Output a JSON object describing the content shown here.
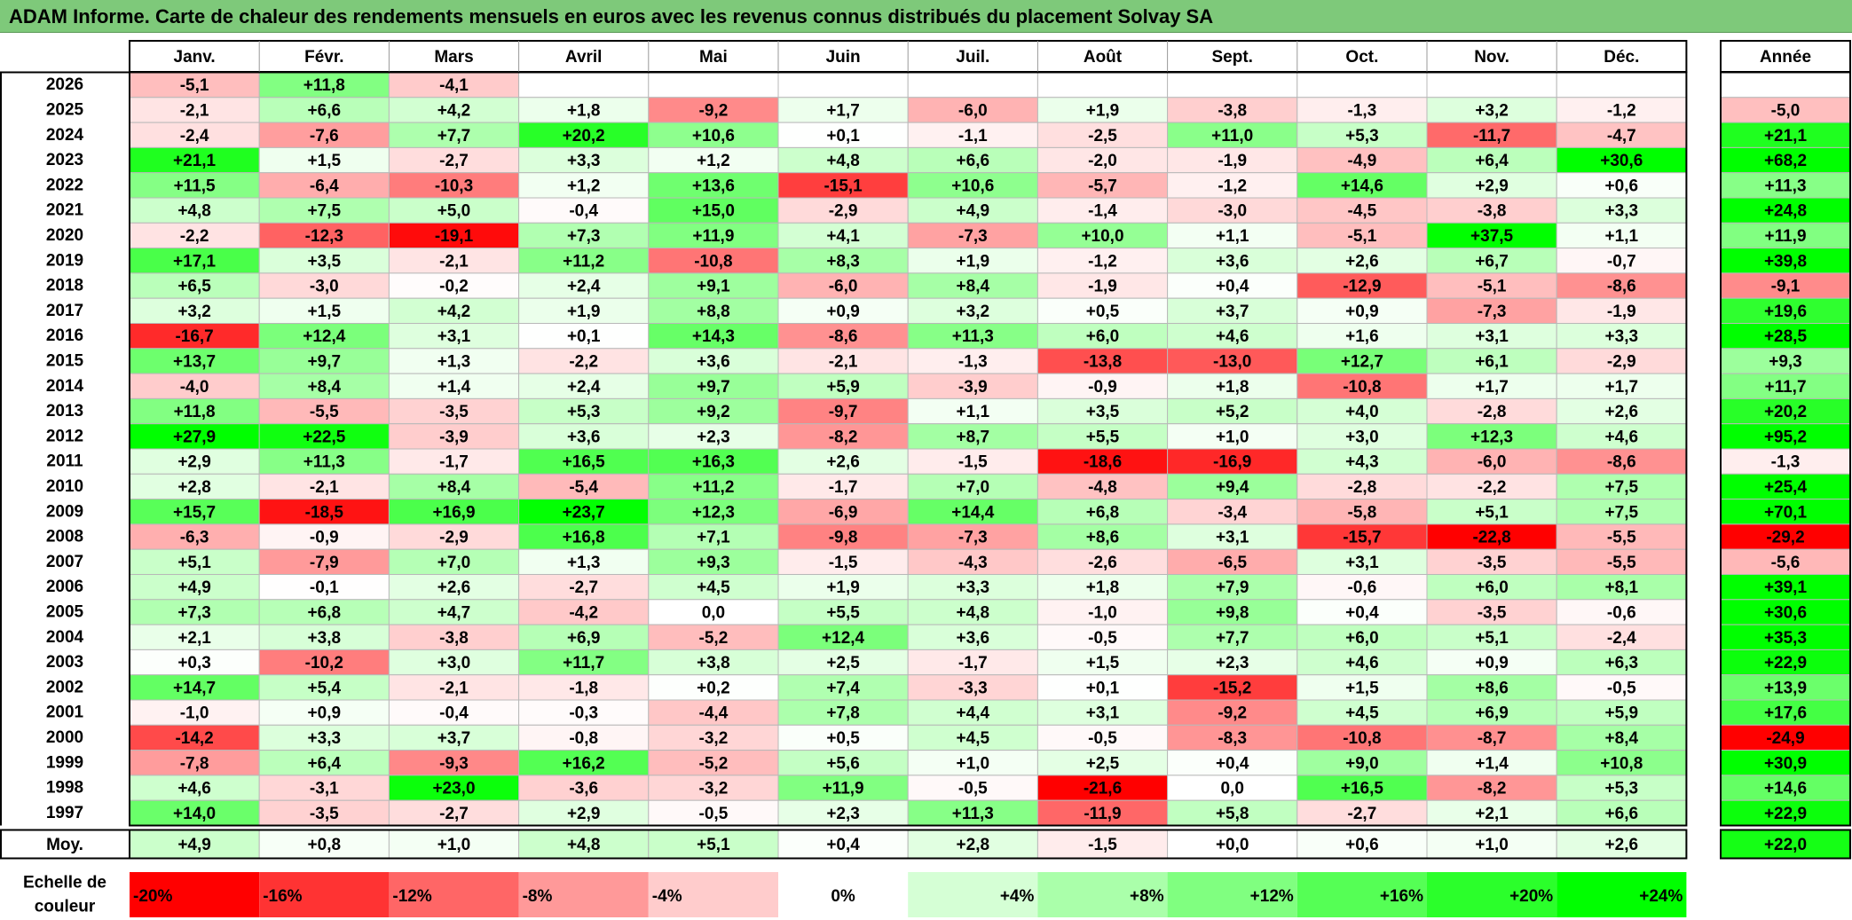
{
  "title": "ADAM Informe. Carte de chaleur des rendements mensuels en euros avec les revenus connus distribués du placement Solvay SA",
  "chart_data": {
    "type": "heatmap",
    "months": [
      "Janv.",
      "Févr.",
      "Mars",
      "Avril",
      "Mai",
      "Juin",
      "Juil.",
      "Août",
      "Sept.",
      "Oct.",
      "Nov.",
      "Déc."
    ],
    "annual_header": "Année",
    "rows": [
      {
        "year": "2026",
        "values": [
          "-5,1",
          "+11,8",
          "-4,1",
          "",
          "",
          "",
          "",
          "",
          "",
          "",
          "",
          ""
        ],
        "annual": ""
      },
      {
        "year": "2025",
        "values": [
          "-2,1",
          "+6,6",
          "+4,2",
          "+1,8",
          "-9,2",
          "+1,7",
          "-6,0",
          "+1,9",
          "-3,8",
          "-1,3",
          "+3,2",
          "-1,2"
        ],
        "annual": "-5,0"
      },
      {
        "year": "2024",
        "values": [
          "-2,4",
          "-7,6",
          "+7,7",
          "+20,2",
          "+10,6",
          "+0,1",
          "-1,1",
          "-2,5",
          "+11,0",
          "+5,3",
          "-11,7",
          "-4,7"
        ],
        "annual": "+21,1"
      },
      {
        "year": "2023",
        "values": [
          "+21,1",
          "+1,5",
          "-2,7",
          "+3,3",
          "+1,2",
          "+4,8",
          "+6,6",
          "-2,0",
          "-1,9",
          "-4,9",
          "+6,4",
          "+30,6"
        ],
        "annual": "+68,2"
      },
      {
        "year": "2022",
        "values": [
          "+11,5",
          "-6,4",
          "-10,3",
          "+1,2",
          "+13,6",
          "-15,1",
          "+10,6",
          "-5,7",
          "-1,2",
          "+14,6",
          "+2,9",
          "+0,6"
        ],
        "annual": "+11,3"
      },
      {
        "year": "2021",
        "values": [
          "+4,8",
          "+7,5",
          "+5,0",
          "-0,4",
          "+15,0",
          "-2,9",
          "+4,9",
          "-1,4",
          "-3,0",
          "-4,5",
          "-3,8",
          "+3,3"
        ],
        "annual": "+24,8"
      },
      {
        "year": "2020",
        "values": [
          "-2,2",
          "-12,3",
          "-19,1",
          "+7,3",
          "+11,9",
          "+4,1",
          "-7,3",
          "+10,0",
          "+1,1",
          "-5,1",
          "+37,5",
          "+1,1"
        ],
        "annual": "+11,9"
      },
      {
        "year": "2019",
        "values": [
          "+17,1",
          "+3,5",
          "-2,1",
          "+11,2",
          "-10,8",
          "+8,3",
          "+1,9",
          "-1,2",
          "+3,6",
          "+2,6",
          "+6,7",
          "-0,7"
        ],
        "annual": "+39,8"
      },
      {
        "year": "2018",
        "values": [
          "+6,5",
          "-3,0",
          "-0,2",
          "+2,4",
          "+9,1",
          "-6,0",
          "+8,4",
          "-1,9",
          "+0,4",
          "-12,9",
          "-5,1",
          "-8,6"
        ],
        "annual": "-9,1"
      },
      {
        "year": "2017",
        "values": [
          "+3,2",
          "+1,5",
          "+4,2",
          "+1,9",
          "+8,8",
          "+0,9",
          "+3,2",
          "+0,5",
          "+3,7",
          "+0,9",
          "-7,3",
          "-1,9"
        ],
        "annual": "+19,6"
      },
      {
        "year": "2016",
        "values": [
          "-16,7",
          "+12,4",
          "+3,1",
          "+0,1",
          "+14,3",
          "-8,6",
          "+11,3",
          "+6,0",
          "+4,6",
          "+1,6",
          "+3,1",
          "+3,3"
        ],
        "annual": "+28,5"
      },
      {
        "year": "2015",
        "values": [
          "+13,7",
          "+9,7",
          "+1,3",
          "-2,2",
          "+3,6",
          "-2,1",
          "-1,3",
          "-13,8",
          "-13,0",
          "+12,7",
          "+6,1",
          "-2,9"
        ],
        "annual": "+9,3"
      },
      {
        "year": "2014",
        "values": [
          "-4,0",
          "+8,4",
          "+1,4",
          "+2,4",
          "+9,7",
          "+5,9",
          "-3,9",
          "-0,9",
          "+1,8",
          "-10,8",
          "+1,7",
          "+1,7"
        ],
        "annual": "+11,7"
      },
      {
        "year": "2013",
        "values": [
          "+11,8",
          "-5,5",
          "-3,5",
          "+5,3",
          "+9,2",
          "-9,7",
          "+1,1",
          "+3,5",
          "+5,2",
          "+4,0",
          "-2,8",
          "+2,6"
        ],
        "annual": "+20,2"
      },
      {
        "year": "2012",
        "values": [
          "+27,9",
          "+22,5",
          "-3,9",
          "+3,6",
          "+2,3",
          "-8,2",
          "+8,7",
          "+5,5",
          "+1,0",
          "+3,0",
          "+12,3",
          "+4,6"
        ],
        "annual": "+95,2"
      },
      {
        "year": "2011",
        "values": [
          "+2,9",
          "+11,3",
          "-1,7",
          "+16,5",
          "+16,3",
          "+2,6",
          "-1,5",
          "-18,6",
          "-16,9",
          "+4,3",
          "-6,0",
          "-8,6"
        ],
        "annual": "-1,3"
      },
      {
        "year": "2010",
        "values": [
          "+2,8",
          "-2,1",
          "+8,4",
          "-5,4",
          "+11,2",
          "-1,7",
          "+7,0",
          "-4,8",
          "+9,4",
          "-2,8",
          "-2,2",
          "+7,5"
        ],
        "annual": "+25,4"
      },
      {
        "year": "2009",
        "values": [
          "+15,7",
          "-18,5",
          "+16,9",
          "+23,7",
          "+12,3",
          "-6,9",
          "+14,4",
          "+6,8",
          "-3,4",
          "-5,8",
          "+5,1",
          "+7,5"
        ],
        "annual": "+70,1"
      },
      {
        "year": "2008",
        "values": [
          "-6,3",
          "-0,9",
          "-2,9",
          "+16,8",
          "+7,1",
          "-9,8",
          "-7,3",
          "+8,6",
          "+3,1",
          "-15,7",
          "-22,8",
          "-5,5"
        ],
        "annual": "-29,2"
      },
      {
        "year": "2007",
        "values": [
          "+5,1",
          "-7,9",
          "+7,0",
          "+1,3",
          "+9,3",
          "-1,5",
          "-4,3",
          "-2,6",
          "-6,5",
          "+3,1",
          "-3,5",
          "-5,5"
        ],
        "annual": "-5,6"
      },
      {
        "year": "2006",
        "values": [
          "+4,9",
          "-0,1",
          "+2,6",
          "-2,7",
          "+4,5",
          "+1,9",
          "+3,3",
          "+1,8",
          "+7,9",
          "-0,6",
          "+6,0",
          "+8,1"
        ],
        "annual": "+39,1"
      },
      {
        "year": "2005",
        "values": [
          "+7,3",
          "+6,8",
          "+4,7",
          "-4,2",
          "0,0",
          "+5,5",
          "+4,8",
          "-1,0",
          "+9,8",
          "+0,4",
          "-3,5",
          "-0,6"
        ],
        "annual": "+30,6"
      },
      {
        "year": "2004",
        "values": [
          "+2,1",
          "+3,8",
          "-3,8",
          "+6,9",
          "-5,2",
          "+12,4",
          "+3,6",
          "-0,5",
          "+7,7",
          "+6,0",
          "+5,1",
          "-2,4"
        ],
        "annual": "+35,3"
      },
      {
        "year": "2003",
        "values": [
          "+0,3",
          "-10,2",
          "+3,0",
          "+11,7",
          "+3,8",
          "+2,5",
          "-1,7",
          "+1,5",
          "+2,3",
          "+4,6",
          "+0,9",
          "+6,3"
        ],
        "annual": "+22,9"
      },
      {
        "year": "2002",
        "values": [
          "+14,7",
          "+5,4",
          "-2,1",
          "-1,8",
          "+0,2",
          "+7,4",
          "-3,3",
          "+0,1",
          "-15,2",
          "+1,5",
          "+8,6",
          "-0,5"
        ],
        "annual": "+13,9"
      },
      {
        "year": "2001",
        "values": [
          "-1,0",
          "+0,9",
          "-0,4",
          "-0,3",
          "-4,4",
          "+7,8",
          "+4,4",
          "+3,1",
          "-9,2",
          "+4,5",
          "+6,9",
          "+5,9"
        ],
        "annual": "+17,6"
      },
      {
        "year": "2000",
        "values": [
          "-14,2",
          "+3,3",
          "+3,7",
          "-0,8",
          "-3,2",
          "+0,5",
          "+4,5",
          "-0,5",
          "-8,3",
          "-10,8",
          "-8,7",
          "+8,4"
        ],
        "annual": "-24,9"
      },
      {
        "year": "1999",
        "values": [
          "-7,8",
          "+6,4",
          "-9,3",
          "+16,2",
          "-5,2",
          "+5,6",
          "+1,0",
          "+2,5",
          "+0,4",
          "+9,0",
          "+1,4",
          "+10,8"
        ],
        "annual": "+30,9"
      },
      {
        "year": "1998",
        "values": [
          "+4,6",
          "-3,1",
          "+23,0",
          "-3,6",
          "-3,2",
          "+11,9",
          "-0,5",
          "-21,6",
          "0,0",
          "+16,5",
          "-8,2",
          "+5,3"
        ],
        "annual": "+14,6"
      },
      {
        "year": "1997",
        "values": [
          "+14,0",
          "-3,5",
          "-2,7",
          "+2,9",
          "-0,5",
          "+2,3",
          "+11,3",
          "-11,9",
          "+5,8",
          "-2,7",
          "+2,1",
          "+6,6"
        ],
        "annual": "+22,9"
      }
    ],
    "average": {
      "label": "Moy.",
      "values": [
        "+4,9",
        "+0,8",
        "+1,0",
        "+4,8",
        "+5,1",
        "+0,4",
        "+2,8",
        "-1,5",
        "+0,0",
        "+0,6",
        "+1,0",
        "+2,6"
      ],
      "annual": "+22,0"
    },
    "scale": {
      "label_line1": "Echelle de",
      "label_line2": "couleur",
      "steps": [
        {
          "label": "-20%",
          "value": -20
        },
        {
          "label": "-16%",
          "value": -16
        },
        {
          "label": "-12%",
          "value": -12
        },
        {
          "label": "-8%",
          "value": -8
        },
        {
          "label": "-4%",
          "value": -4
        },
        {
          "label": "0%",
          "value": 0
        },
        {
          "label": "+4%",
          "value": 4
        },
        {
          "label": "+8%",
          "value": 8
        },
        {
          "label": "+12%",
          "value": 12
        },
        {
          "label": "+16%",
          "value": 16
        },
        {
          "label": "+20%",
          "value": 20
        },
        {
          "label": "+24%",
          "value": 24
        }
      ]
    },
    "colors": {
      "negative": "#ff0000",
      "neutral": "#ffffff",
      "positive": "#00ff00",
      "title_bar": "#7ec97a"
    }
  }
}
